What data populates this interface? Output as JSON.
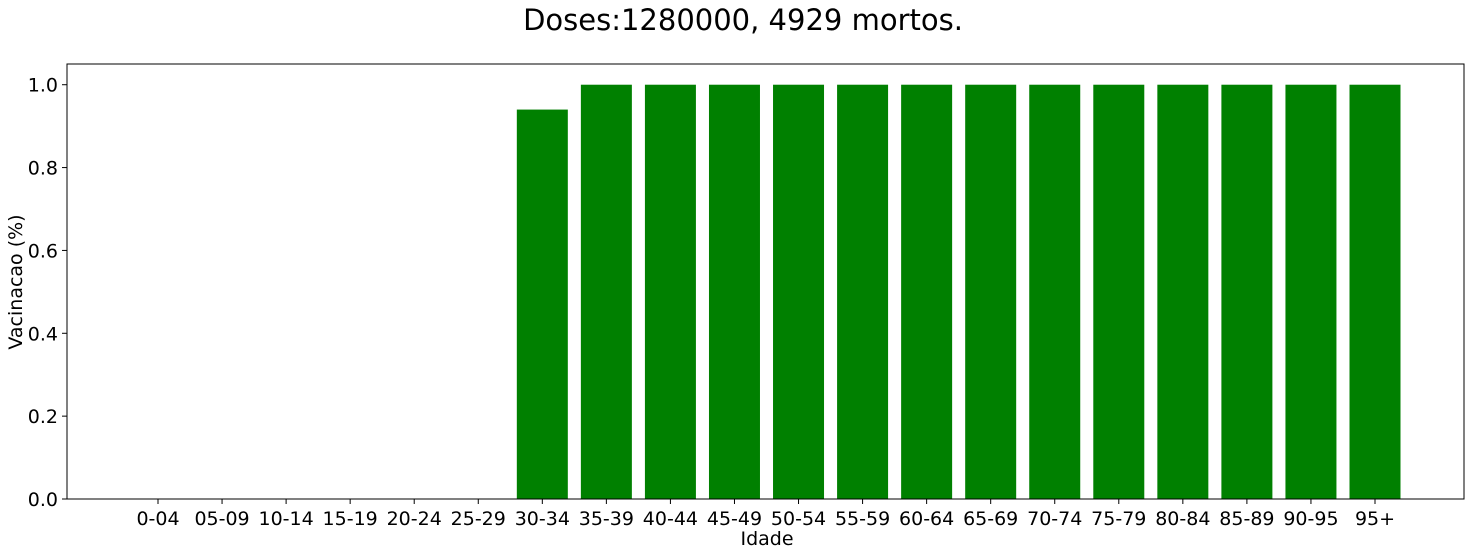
{
  "chart_data": {
    "type": "bar",
    "title": "Doses:1280000, 4929 mortos.",
    "xlabel": "Idade",
    "ylabel": "Vacinacao (%)",
    "categories": [
      "0-04",
      "05-09",
      "10-14",
      "15-19",
      "20-24",
      "25-29",
      "30-34",
      "35-39",
      "40-44",
      "45-49",
      "50-54",
      "55-59",
      "60-64",
      "65-69",
      "70-74",
      "75-79",
      "80-84",
      "85-89",
      "90-95",
      "95+"
    ],
    "values": [
      0,
      0,
      0,
      0,
      0,
      0,
      0.94,
      1.0,
      1.0,
      1.0,
      1.0,
      1.0,
      1.0,
      1.0,
      1.0,
      1.0,
      1.0,
      1.0,
      1.0,
      1.0
    ],
    "yticks": [
      "0.0",
      "0.2",
      "0.4",
      "0.6",
      "0.8",
      "1.0"
    ],
    "ylim": [
      0,
      1.05
    ],
    "bar_color": "#008000",
    "grid": false,
    "legend": "none"
  }
}
